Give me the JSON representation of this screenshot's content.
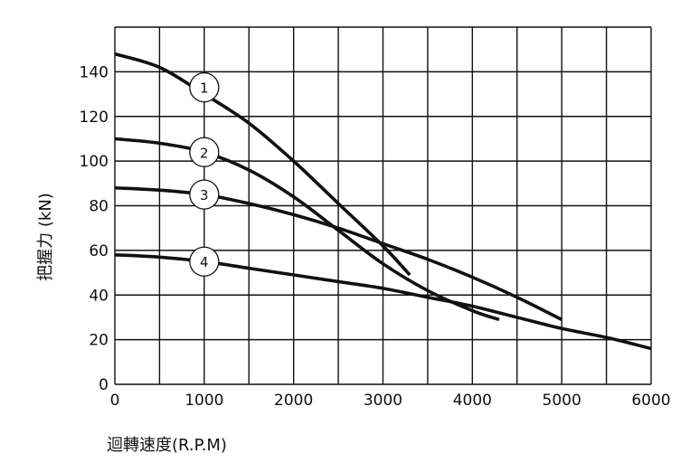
{
  "chart_data": {
    "type": "line",
    "xlabel": "迴轉速度(R.P.M)",
    "ylabel": "把握力 (kN)",
    "xlim": [
      0,
      6000
    ],
    "ylim": [
      0,
      160
    ],
    "x_ticks": [
      "0",
      "1000",
      "2000",
      "3000",
      "4000",
      "5000",
      "6000"
    ],
    "y_ticks": [
      "0",
      "20",
      "40",
      "60",
      "80",
      "100",
      "120",
      "140"
    ],
    "grid": true,
    "series": [
      {
        "name": "1",
        "x": [
          0,
          500,
          1000,
          1500,
          2000,
          2500,
          3000,
          3300
        ],
        "y": [
          148,
          142,
          130,
          117,
          100,
          81,
          62,
          49
        ]
      },
      {
        "name": "2",
        "x": [
          0,
          500,
          1000,
          1500,
          2000,
          2500,
          3000,
          3500,
          4000,
          4300
        ],
        "y": [
          110,
          108,
          104,
          96,
          84,
          69,
          54,
          42,
          33,
          29
        ]
      },
      {
        "name": "3",
        "x": [
          0,
          500,
          1000,
          1500,
          2000,
          2500,
          3000,
          3500,
          4000,
          4500,
          5000
        ],
        "y": [
          88,
          87,
          85,
          81,
          76,
          70,
          63,
          56,
          48,
          39,
          29
        ]
      },
      {
        "name": "4",
        "x": [
          0,
          500,
          1000,
          1500,
          2000,
          2500,
          3000,
          3500,
          4000,
          4500,
          5000,
          5500,
          6000
        ],
        "y": [
          58,
          57,
          55,
          52,
          49,
          46,
          43,
          39,
          35,
          30,
          25,
          21,
          16
        ]
      }
    ],
    "label_positions": [
      {
        "series": "1",
        "x": 1000,
        "y": 133
      },
      {
        "series": "2",
        "x": 1000,
        "y": 104
      },
      {
        "series": "3",
        "x": 1000,
        "y": 85
      },
      {
        "series": "4",
        "x": 1000,
        "y": 55
      }
    ]
  }
}
